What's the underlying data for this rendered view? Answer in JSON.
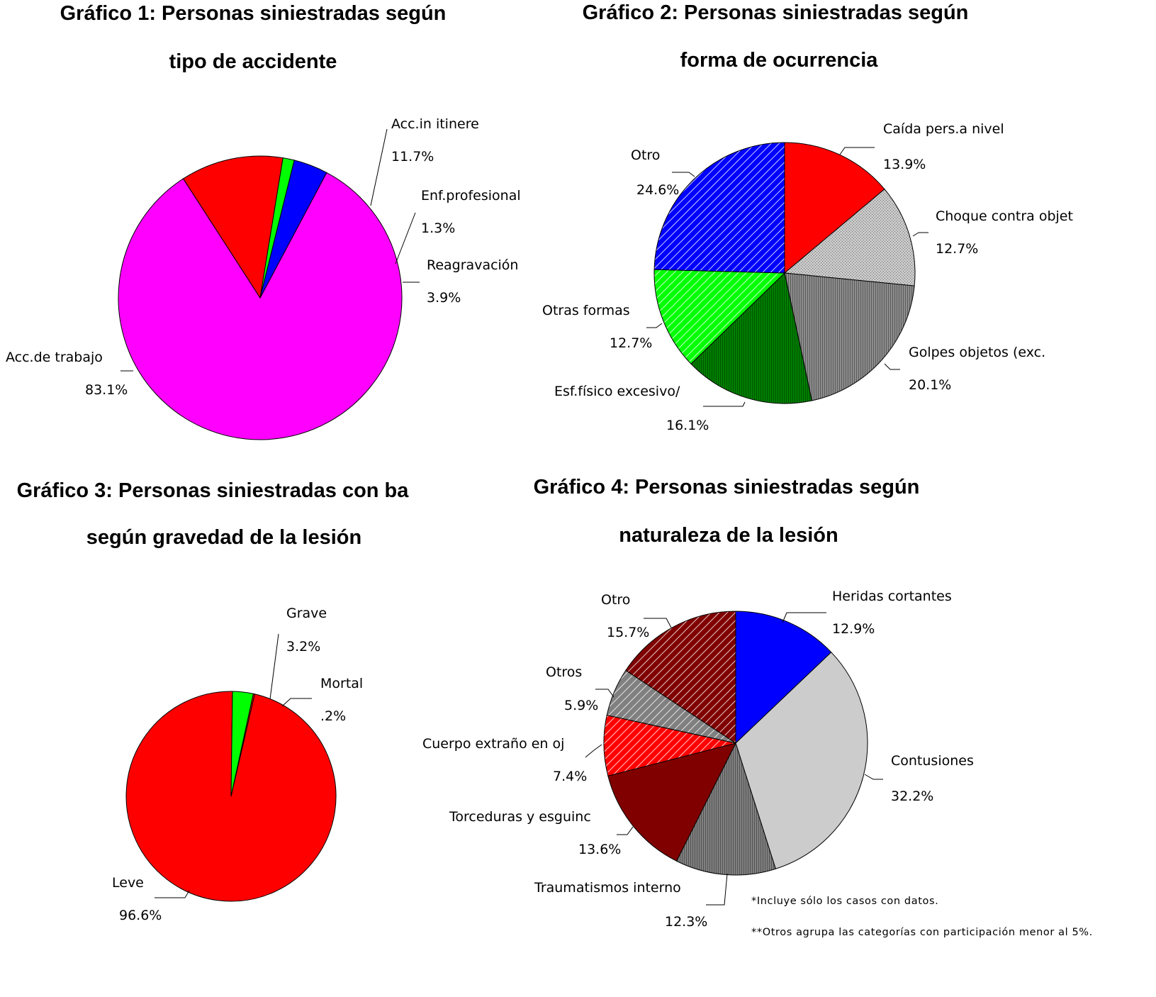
{
  "chart_data": [
    {
      "type": "pie",
      "title_lines": [
        "Gráfico 1: Personas siniestradas según",
        "tipo de accidente"
      ],
      "slices": [
        {
          "label": "Acc.de trabajo",
          "value": 83.1,
          "value_label": "83.1%",
          "color": "#ff00ff",
          "pattern": "solid"
        },
        {
          "label": "Acc.in itinere",
          "value": 11.7,
          "value_label": "11.7%",
          "color": "#ff0000",
          "pattern": "solid"
        },
        {
          "label": "Enf.profesional",
          "value": 1.3,
          "value_label": "1.3%",
          "color": "#00ff00",
          "pattern": "solid"
        },
        {
          "label": "Reagravación",
          "value": 3.9,
          "value_label": "3.9%",
          "color": "#0000ff",
          "pattern": "solid"
        }
      ]
    },
    {
      "type": "pie",
      "title_lines": [
        "Gráfico 2: Personas siniestradas según",
        "forma de ocurrencia"
      ],
      "slices": [
        {
          "label": "Caída pers.a nivel",
          "value": 13.9,
          "value_label": "13.9%",
          "color": "#ff0000",
          "pattern": "solid"
        },
        {
          "label": "Choque contra  objet",
          "value": 12.7,
          "value_label": "12.7%",
          "color": "#c8c8c8",
          "pattern": "dots"
        },
        {
          "label": "Golpes objetos (exc.",
          "value": 20.1,
          "value_label": "20.1%",
          "color": "#8c8c8c",
          "pattern": "vlines"
        },
        {
          "label": "Esf.físico excesivo/",
          "value": 16.1,
          "value_label": "16.1%",
          "color": "#008000",
          "pattern": "vlines"
        },
        {
          "label": "Otras formas",
          "value": 12.7,
          "value_label": "12.7%",
          "color": "#00ff00",
          "pattern": "hatch"
        },
        {
          "label": "Otro",
          "value": 24.6,
          "value_label": "24.6%",
          "color": "#0000ff",
          "pattern": "hatch"
        }
      ]
    },
    {
      "type": "pie",
      "title_lines": [
        "Gráfico 3: Personas siniestradas con ba",
        "según gravedad de la lesión"
      ],
      "slices": [
        {
          "label": "Leve",
          "value": 96.6,
          "value_label": "96.6%",
          "color": "#ff0000",
          "pattern": "solid"
        },
        {
          "label": "Grave",
          "value": 3.2,
          "value_label": "3.2%",
          "color": "#00ff00",
          "pattern": "solid"
        },
        {
          "label": "Mortal",
          "value": 0.2,
          "value_label": ".2%",
          "color": "#ff0000",
          "pattern": "solid"
        }
      ]
    },
    {
      "type": "pie",
      "title_lines": [
        "Gráfico 4: Personas siniestradas según",
        "naturaleza de la lesión"
      ],
      "slices": [
        {
          "label": "Heridas cortantes",
          "value": 12.9,
          "value_label": "12.9%",
          "color": "#0000ff",
          "pattern": "solid"
        },
        {
          "label": "Contusiones",
          "value": 32.2,
          "value_label": "32.2%",
          "color": "#cccccc",
          "pattern": "solid"
        },
        {
          "label": "Traumatismos interno",
          "value": 12.3,
          "value_label": "12.3%",
          "color": "#808080",
          "pattern": "vlines"
        },
        {
          "label": "Torceduras y esguinc",
          "value": 13.6,
          "value_label": "13.6%",
          "color": "#800000",
          "pattern": "solid"
        },
        {
          "label": "Cuerpo extraño en oj",
          "value": 7.4,
          "value_label": "7.4%",
          "color": "#ff0000",
          "pattern": "hatch"
        },
        {
          "label": "Otros",
          "value": 5.9,
          "value_label": "5.9%",
          "color": "#808080",
          "pattern": "hatch"
        },
        {
          "label": "Otro",
          "value": 15.7,
          "value_label": "15.7%",
          "color": "#800000",
          "pattern": "hatch"
        }
      ]
    }
  ],
  "footnotes": [
    "*Incluye sólo los casos con datos.",
    "**Otros agrupa las categorías con participación menor al 5%."
  ]
}
